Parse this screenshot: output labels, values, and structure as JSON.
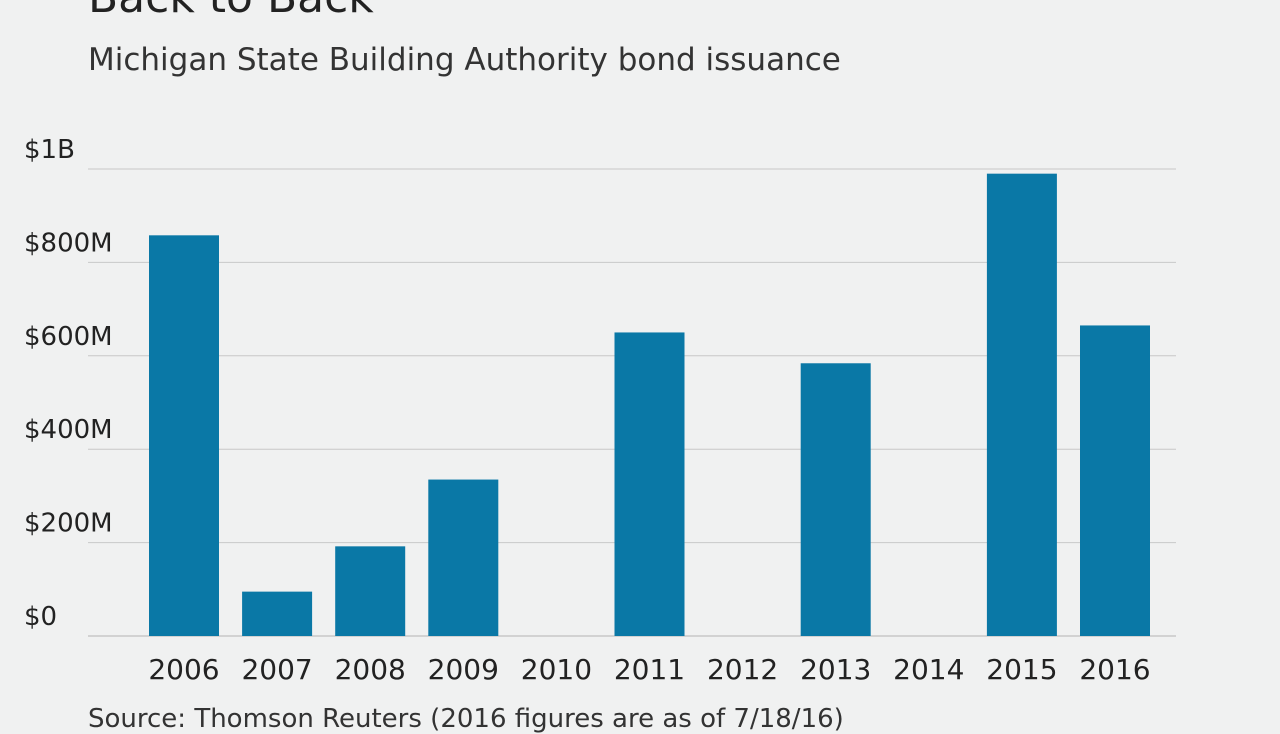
{
  "header": {
    "title": "Back to Back",
    "subtitle": "Michigan State Building Authority bond issuance"
  },
  "footer": {
    "source": "Source: Thomson Reuters (2016 figures are as of 7/18/16)"
  },
  "colors": {
    "bar": "#0a78a6",
    "grid": "#c8c8c8",
    "background": "#f0f1f1"
  },
  "chart_data": {
    "type": "bar",
    "title": "Back to Back",
    "subtitle": "Michigan State Building Authority bond issuance",
    "xlabel": "",
    "ylabel": "",
    "categories": [
      "2006",
      "2007",
      "2008",
      "2009",
      "2010",
      "2011",
      "2012",
      "2013",
      "2014",
      "2015",
      "2016"
    ],
    "values": [
      858,
      95,
      192,
      335,
      0,
      650,
      0,
      584,
      0,
      990,
      665
    ],
    "value_unit": "millions of dollars",
    "ylim": [
      0,
      1000
    ],
    "y_ticks": [
      {
        "value": 0,
        "label": "$0"
      },
      {
        "value": 200,
        "label": "$200M"
      },
      {
        "value": 400,
        "label": "$400M"
      },
      {
        "value": 600,
        "label": "$600M"
      },
      {
        "value": 800,
        "label": "$800M"
      },
      {
        "value": 1000,
        "label": "$1B"
      }
    ],
    "grid": true,
    "legend": "none"
  }
}
